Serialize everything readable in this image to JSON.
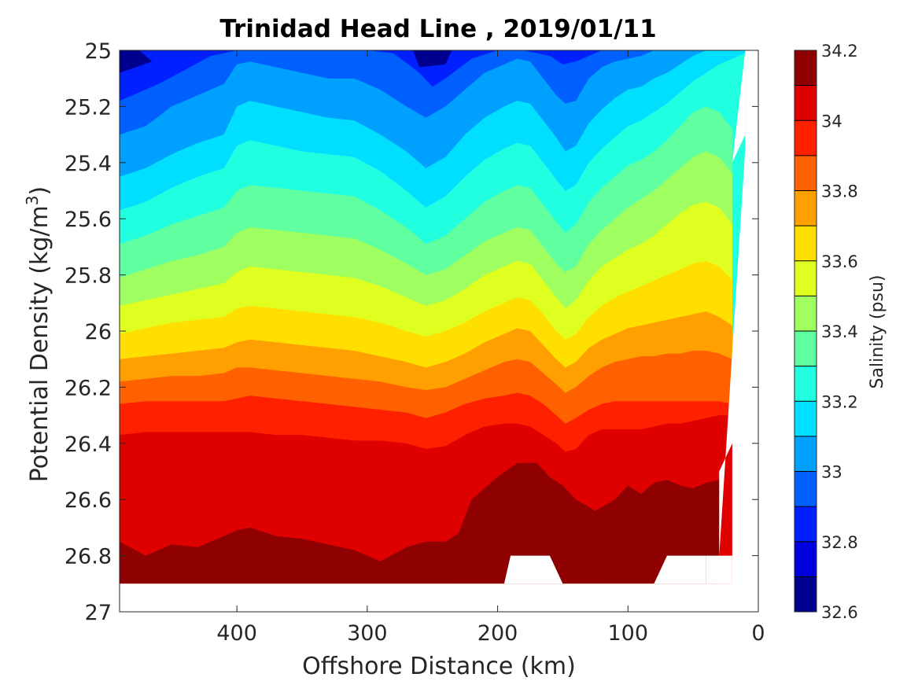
{
  "chart_data": {
    "type": "heatmap",
    "subtype": "filled-contour",
    "title": "Trinidad Head Line , 2019/01/11",
    "xlabel": "Offshore Distance (km)",
    "ylabel_main": "Potential Density (kg/m",
    "ylabel_sup": "3",
    "ylabel_end": ")",
    "xlim": [
      490,
      0
    ],
    "x_reversed": true,
    "ylim": [
      25,
      27
    ],
    "y_reversed": true,
    "x_ticks": [
      400,
      300,
      200,
      100,
      0
    ],
    "x_tick_labels": [
      "400",
      "300",
      "200",
      "100",
      "0"
    ],
    "y_ticks": [
      25,
      25.2,
      25.4,
      25.6,
      25.8,
      26,
      26.2,
      26.4,
      26.6,
      26.8,
      27
    ],
    "y_tick_labels": [
      "25",
      "25.2",
      "25.4",
      "25.6",
      "25.8",
      "26",
      "26.2",
      "26.4",
      "26.6",
      "26.8",
      "27"
    ],
    "colorbar": {
      "label": "Salinity (psu)",
      "range": [
        32.6,
        34.2
      ],
      "levels": [
        32.6,
        32.7,
        32.8,
        32.9,
        33.0,
        33.1,
        33.2,
        33.3,
        33.4,
        33.5,
        33.6,
        33.7,
        33.8,
        33.9,
        34.0,
        34.1,
        34.2
      ],
      "colors": [
        "#00008f",
        "#0000df",
        "#0020ff",
        "#0060ff",
        "#00a0ff",
        "#00dfff",
        "#20ffdf",
        "#60ffa0",
        "#a0ff60",
        "#dfff20",
        "#ffdf00",
        "#ffa000",
        "#ff6000",
        "#ff2000",
        "#df0000",
        "#8f0000"
      ],
      "tick_values": [
        32.6,
        32.8,
        33,
        33.2,
        33.4,
        33.6,
        33.8,
        34,
        34.2
      ],
      "tick_labels": [
        "32.6",
        "32.8",
        "33",
        "33.2",
        "33.4",
        "33.6",
        "33.8",
        "34",
        "34.2"
      ]
    },
    "contours": [
      {
        "salinity": 32.9,
        "level_index": 3,
        "x": [
          490,
          460,
          440,
          420,
          400,
          380,
          350,
          320,
          300,
          280,
          260,
          250,
          240,
          220,
          200,
          180,
          160,
          150,
          140,
          120,
          100,
          80,
          60,
          40,
          25,
          15,
          10
        ],
        "y": [
          25.18,
          25.12,
          25.07,
          25.02,
          25.0,
          25.0,
          25.0,
          25.0,
          25.0,
          25.01,
          25.08,
          25.13,
          25.1,
          25.03,
          25.0,
          25.0,
          25.02,
          25.05,
          25.04,
          25.0,
          25.0,
          25.0,
          25.0,
          25.0,
          25.0,
          25.0,
          25.0
        ]
      },
      {
        "salinity": 33.0,
        "level_index": 4,
        "x": [
          490,
          470,
          450,
          430,
          410,
          400,
          390,
          370,
          350,
          330,
          310,
          290,
          270,
          255,
          240,
          225,
          210,
          195,
          185,
          175,
          165,
          155,
          148,
          140,
          130,
          120,
          110,
          100,
          90,
          80,
          70,
          60,
          50,
          40,
          30,
          20,
          10
        ],
        "y": [
          25.3,
          25.27,
          25.2,
          25.16,
          25.12,
          25.05,
          25.04,
          25.06,
          25.08,
          25.1,
          25.1,
          25.14,
          25.2,
          25.24,
          25.2,
          25.14,
          25.08,
          25.05,
          25.03,
          25.04,
          25.1,
          25.16,
          25.19,
          25.18,
          25.1,
          25.06,
          25.04,
          25.03,
          25.02,
          25.0,
          25.0,
          25.0,
          25.0,
          25.0,
          25.0,
          25.0,
          25.0
        ]
      },
      {
        "salinity": 33.1,
        "level_index": 5,
        "x": [
          490,
          470,
          450,
          430,
          410,
          400,
          390,
          370,
          350,
          330,
          310,
          290,
          270,
          255,
          240,
          225,
          210,
          195,
          185,
          175,
          165,
          155,
          148,
          140,
          130,
          120,
          110,
          100,
          90,
          80,
          70,
          60,
          50,
          40,
          30,
          20,
          10
        ],
        "y": [
          25.45,
          25.42,
          25.37,
          25.33,
          25.3,
          25.2,
          25.18,
          25.2,
          25.22,
          25.24,
          25.25,
          25.3,
          25.36,
          25.42,
          25.38,
          25.3,
          25.24,
          25.2,
          25.18,
          25.19,
          25.25,
          25.31,
          25.36,
          25.34,
          25.26,
          25.21,
          25.17,
          25.14,
          25.13,
          25.1,
          25.08,
          25.05,
          25.02,
          25.0,
          25.0,
          25.0,
          25.0
        ]
      },
      {
        "salinity": 33.2,
        "level_index": 6,
        "x": [
          490,
          470,
          450,
          430,
          410,
          400,
          390,
          370,
          350,
          330,
          310,
          290,
          270,
          255,
          240,
          225,
          210,
          195,
          185,
          175,
          165,
          155,
          148,
          140,
          130,
          120,
          110,
          100,
          90,
          80,
          70,
          60,
          50,
          40,
          30,
          20,
          10
        ],
        "y": [
          25.57,
          25.54,
          25.49,
          25.45,
          25.42,
          25.34,
          25.32,
          25.34,
          25.36,
          25.37,
          25.38,
          25.43,
          25.5,
          25.56,
          25.52,
          25.45,
          25.39,
          25.35,
          25.33,
          25.34,
          25.4,
          25.46,
          25.5,
          25.48,
          25.4,
          25.35,
          25.31,
          25.27,
          25.25,
          25.22,
          25.19,
          25.15,
          25.11,
          25.08,
          25.05,
          25.03,
          25.01
        ]
      },
      {
        "salinity": 33.3,
        "level_index": 7,
        "x": [
          490,
          470,
          450,
          430,
          410,
          400,
          390,
          370,
          350,
          330,
          310,
          290,
          270,
          255,
          240,
          225,
          210,
          195,
          185,
          175,
          165,
          155,
          148,
          140,
          130,
          120,
          110,
          100,
          90,
          80,
          70,
          60,
          50,
          40,
          30,
          20
        ],
        "y": [
          25.69,
          25.66,
          25.62,
          25.59,
          25.56,
          25.5,
          25.48,
          25.49,
          25.5,
          25.51,
          25.52,
          25.57,
          25.63,
          25.69,
          25.66,
          25.6,
          25.54,
          25.5,
          25.48,
          25.49,
          25.55,
          25.61,
          25.65,
          25.62,
          25.54,
          25.49,
          25.45,
          25.41,
          25.39,
          25.36,
          25.32,
          25.27,
          25.22,
          25.2,
          25.22,
          25.28
        ]
      },
      {
        "salinity": 33.4,
        "level_index": 8,
        "x": [
          490,
          470,
          450,
          430,
          410,
          400,
          390,
          370,
          350,
          330,
          310,
          290,
          270,
          255,
          240,
          225,
          210,
          195,
          185,
          175,
          165,
          155,
          148,
          140,
          130,
          120,
          110,
          100,
          90,
          80,
          70,
          60,
          50,
          40,
          30,
          20
        ],
        "y": [
          25.81,
          25.78,
          25.75,
          25.73,
          25.7,
          25.65,
          25.63,
          25.64,
          25.65,
          25.66,
          25.67,
          25.71,
          25.76,
          25.8,
          25.78,
          25.73,
          25.68,
          25.65,
          25.63,
          25.64,
          25.7,
          25.76,
          25.79,
          25.77,
          25.69,
          25.64,
          25.6,
          25.56,
          25.53,
          25.5,
          25.46,
          25.42,
          25.38,
          25.36,
          25.38,
          25.44
        ]
      },
      {
        "salinity": 33.5,
        "level_index": 9,
        "x": [
          490,
          470,
          450,
          430,
          410,
          400,
          390,
          370,
          350,
          330,
          310,
          290,
          270,
          255,
          240,
          225,
          210,
          195,
          185,
          175,
          165,
          155,
          148,
          140,
          130,
          120,
          110,
          100,
          90,
          80,
          70,
          60,
          50,
          40,
          30,
          20
        ],
        "y": [
          25.91,
          25.89,
          25.87,
          25.85,
          25.83,
          25.79,
          25.77,
          25.78,
          25.79,
          25.8,
          25.81,
          25.84,
          25.88,
          25.91,
          25.89,
          25.85,
          25.8,
          25.77,
          25.75,
          25.76,
          25.82,
          25.88,
          25.92,
          25.89,
          25.82,
          25.77,
          25.74,
          25.71,
          25.69,
          25.66,
          25.62,
          25.58,
          25.55,
          25.54,
          25.56,
          25.62
        ]
      },
      {
        "salinity": 33.6,
        "level_index": 10,
        "x": [
          490,
          470,
          450,
          430,
          410,
          400,
          390,
          370,
          350,
          330,
          310,
          290,
          270,
          255,
          240,
          225,
          210,
          195,
          185,
          175,
          165,
          155,
          148,
          140,
          130,
          120,
          110,
          100,
          90,
          80,
          70,
          60,
          50,
          40,
          30,
          20
        ],
        "y": [
          26.01,
          25.99,
          25.97,
          25.96,
          25.95,
          25.92,
          25.91,
          25.92,
          25.93,
          25.94,
          25.95,
          25.97,
          26.0,
          26.02,
          26.0,
          25.97,
          25.93,
          25.9,
          25.88,
          25.89,
          25.94,
          26.0,
          26.03,
          26.01,
          25.95,
          25.91,
          25.88,
          25.86,
          25.84,
          25.82,
          25.8,
          25.78,
          25.76,
          25.75,
          25.77,
          25.82
        ]
      },
      {
        "salinity": 33.7,
        "level_index": 11,
        "x": [
          490,
          470,
          450,
          430,
          410,
          400,
          390,
          370,
          350,
          330,
          310,
          290,
          270,
          255,
          240,
          225,
          210,
          195,
          185,
          175,
          165,
          155,
          148,
          140,
          130,
          120,
          110,
          100,
          90,
          80,
          70,
          60,
          50,
          40,
          30,
          20
        ],
        "y": [
          26.1,
          26.09,
          26.08,
          26.07,
          26.06,
          26.04,
          26.03,
          26.04,
          26.05,
          26.06,
          26.07,
          26.09,
          26.11,
          26.13,
          26.11,
          26.08,
          26.04,
          26.01,
          25.99,
          26.0,
          26.05,
          26.1,
          26.13,
          26.11,
          26.06,
          26.03,
          26.01,
          25.99,
          25.98,
          25.97,
          25.96,
          25.95,
          25.94,
          25.93,
          25.95,
          25.98
        ]
      },
      {
        "salinity": 33.8,
        "level_index": 12,
        "x": [
          490,
          470,
          450,
          430,
          410,
          400,
          390,
          370,
          350,
          330,
          310,
          290,
          270,
          255,
          240,
          225,
          210,
          195,
          185,
          175,
          165,
          155,
          148,
          140,
          130,
          120,
          110,
          100,
          90,
          80,
          70,
          60,
          50,
          40,
          30,
          20
        ],
        "y": [
          26.18,
          26.17,
          26.16,
          26.16,
          26.15,
          26.13,
          26.13,
          26.14,
          26.15,
          26.16,
          26.17,
          26.18,
          26.2,
          26.21,
          26.2,
          26.17,
          26.14,
          26.11,
          26.1,
          26.11,
          26.15,
          26.19,
          26.22,
          26.2,
          26.16,
          26.13,
          26.11,
          26.1,
          26.09,
          26.09,
          26.08,
          26.08,
          26.07,
          26.07,
          26.08,
          26.1
        ]
      },
      {
        "salinity": 33.9,
        "level_index": 13,
        "x": [
          490,
          470,
          450,
          430,
          410,
          400,
          390,
          370,
          350,
          330,
          310,
          290,
          270,
          255,
          240,
          225,
          210,
          195,
          185,
          175,
          165,
          155,
          148,
          140,
          130,
          120,
          110,
          100,
          90,
          80,
          70,
          60,
          50,
          40,
          30,
          20
        ],
        "y": [
          26.26,
          26.25,
          26.25,
          26.25,
          26.25,
          26.24,
          26.23,
          26.24,
          26.25,
          26.26,
          26.27,
          26.28,
          26.29,
          26.31,
          26.29,
          26.26,
          26.24,
          26.23,
          26.22,
          26.23,
          26.26,
          26.3,
          26.33,
          26.31,
          26.28,
          26.26,
          26.25,
          26.25,
          26.25,
          26.25,
          26.25,
          26.25,
          26.25,
          26.25,
          26.25,
          26.26
        ]
      },
      {
        "salinity": 34.0,
        "level_index": 14,
        "x": [
          490,
          470,
          450,
          430,
          410,
          400,
          390,
          370,
          350,
          330,
          310,
          290,
          270,
          255,
          240,
          225,
          210,
          195,
          185,
          175,
          165,
          155,
          148,
          140,
          130,
          120,
          110,
          100,
          90,
          80,
          70,
          60,
          50,
          40,
          30,
          20
        ],
        "y": [
          26.37,
          26.36,
          26.36,
          26.36,
          26.36,
          26.36,
          26.36,
          26.37,
          26.37,
          26.38,
          26.39,
          26.39,
          26.4,
          26.42,
          26.41,
          26.37,
          26.34,
          26.33,
          26.33,
          26.34,
          26.37,
          26.4,
          26.43,
          26.42,
          26.37,
          26.35,
          26.35,
          26.35,
          26.35,
          26.34,
          26.33,
          26.33,
          26.32,
          26.31,
          26.3,
          26.3
        ]
      },
      {
        "salinity": 34.1,
        "level_index": 15,
        "x": [
          490,
          470,
          450,
          430,
          410,
          400,
          390,
          370,
          350,
          330,
          310,
          290,
          270,
          255,
          240,
          230,
          220,
          200,
          185,
          170,
          160,
          150,
          140,
          125,
          110,
          100,
          90,
          80,
          70,
          60,
          50,
          40,
          30
        ],
        "y": [
          26.75,
          26.8,
          26.76,
          26.77,
          26.73,
          26.71,
          26.7,
          26.73,
          26.74,
          26.76,
          26.78,
          26.82,
          26.77,
          26.75,
          26.75,
          26.72,
          26.6,
          26.52,
          26.47,
          26.47,
          26.52,
          26.55,
          26.6,
          26.64,
          26.6,
          26.55,
          26.58,
          26.54,
          26.53,
          26.55,
          26.56,
          26.54,
          26.53
        ]
      }
    ]
  }
}
